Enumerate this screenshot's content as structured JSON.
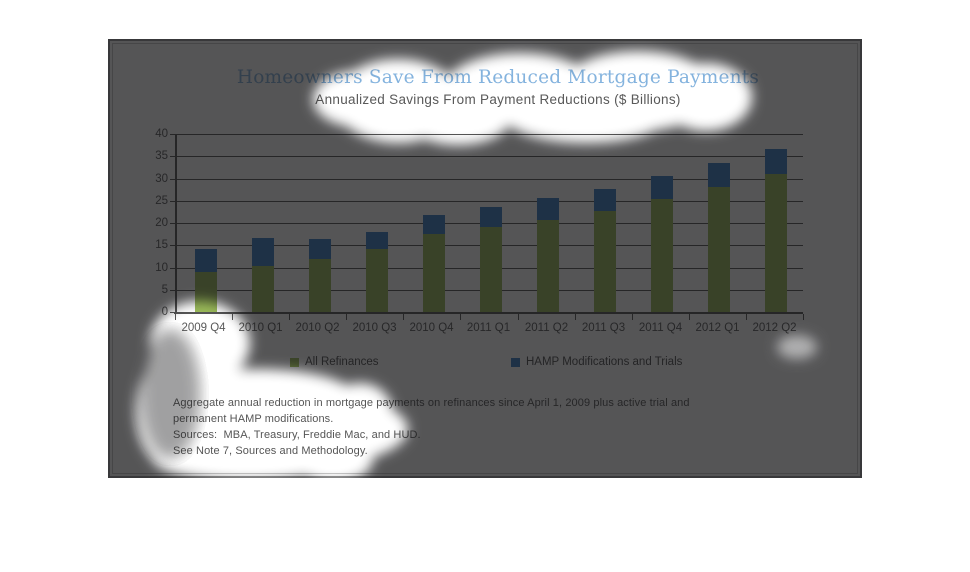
{
  "header": {
    "title": "Homeowners Save From Reduced Mortgage Payments",
    "subtitle": "Annualized Savings From Payment Reductions ($ Billions)"
  },
  "colors": {
    "title": "#84b3de",
    "subtitle": "#595959",
    "axis": "#555555",
    "label": "#595959",
    "all_refinances": "#9bbb59",
    "hamp": "#3b7fc4"
  },
  "chart_data": {
    "type": "bar",
    "stacked": true,
    "title": "Homeowners Save From Reduced Mortgage Payments",
    "subtitle": "Annualized Savings From Payment Reductions ($ Billions)",
    "categories": [
      "2009 Q4",
      "2010 Q1",
      "2010 Q2",
      "2010 Q3",
      "2010 Q4",
      "2011 Q1",
      "2011 Q2",
      "2011 Q3",
      "2011 Q4",
      "2012 Q1",
      "2012 Q2"
    ],
    "series": [
      {
        "name": "All Refinances",
        "color": "#9bbb59",
        "values": [
          8.9,
          10.4,
          11.9,
          14.2,
          17.5,
          19.2,
          20.7,
          22.6,
          25.3,
          28.1,
          31.0
        ]
      },
      {
        "name": "HAMP Modifications and Trials",
        "color": "#3b7fc4",
        "values": [
          5.1,
          6.2,
          4.6,
          3.9,
          4.3,
          4.6,
          4.9,
          5.0,
          5.2,
          5.5,
          5.6
        ]
      }
    ],
    "ylim": [
      0,
      40
    ],
    "ytick_step": 5,
    "yticks": [
      0,
      5,
      10,
      15,
      20,
      25,
      30,
      35,
      40
    ],
    "grid": true,
    "legend_position": "bottom"
  },
  "footnotes": {
    "line1": "Aggregate annual reduction in mortgage payments on refinances since April 1, 2009 plus active trial and",
    "line2": "permanent HAMP modifications.",
    "line3": "Sources:  MBA, Treasury, Freddie Mac, and HUD.",
    "line4": "See Note 7, Sources and Methodology."
  }
}
